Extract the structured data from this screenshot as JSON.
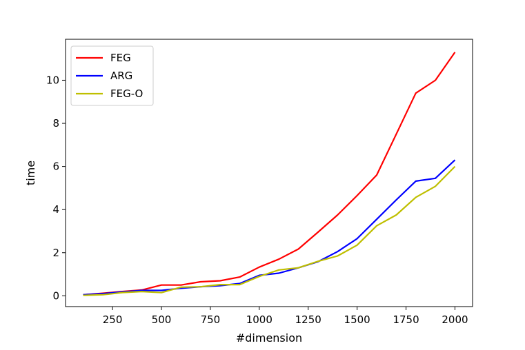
{
  "chart_data": {
    "type": "line",
    "xlabel": "#dimension",
    "ylabel": "time",
    "xlim": [
      10,
      2090
    ],
    "ylim": [
      -0.5,
      11.9
    ],
    "xticks": [
      250,
      500,
      750,
      1000,
      1250,
      1500,
      1750,
      2000
    ],
    "yticks": [
      0,
      2,
      4,
      6,
      8,
      10
    ],
    "grid": false,
    "legend_position": "top-left",
    "x": [
      100,
      200,
      300,
      400,
      500,
      600,
      700,
      800,
      900,
      1000,
      1100,
      1200,
      1300,
      1400,
      1500,
      1600,
      1700,
      1800,
      1900,
      2000
    ],
    "series": [
      {
        "name": "FEG",
        "color": "#ff0000",
        "values": [
          0.05,
          0.12,
          0.2,
          0.27,
          0.5,
          0.5,
          0.65,
          0.7,
          0.87,
          1.33,
          1.7,
          2.17,
          2.95,
          3.75,
          4.65,
          5.6,
          7.5,
          9.4,
          10.0,
          11.3
        ]
      },
      {
        "name": "ARG",
        "color": "#0000ff",
        "values": [
          0.05,
          0.1,
          0.18,
          0.25,
          0.25,
          0.35,
          0.42,
          0.47,
          0.57,
          0.95,
          1.05,
          1.3,
          1.58,
          2.05,
          2.65,
          3.55,
          4.45,
          5.32,
          5.45,
          6.3
        ]
      },
      {
        "name": "FEG-O",
        "color": "#bfbf00",
        "values": [
          0.02,
          0.05,
          0.15,
          0.2,
          0.15,
          0.4,
          0.42,
          0.52,
          0.52,
          0.9,
          1.2,
          1.3,
          1.6,
          1.85,
          2.35,
          3.25,
          3.75,
          4.57,
          5.08,
          6.0
        ]
      }
    ]
  }
}
